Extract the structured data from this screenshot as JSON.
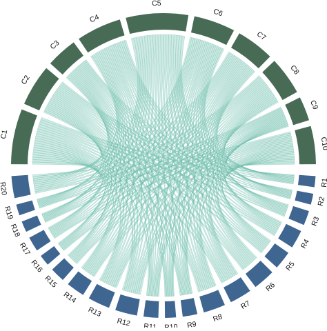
{
  "diagram": {
    "type": "chord",
    "colors": {
      "top_segments": "#476b54",
      "bottom_segments": "#3f6591",
      "ribbon_fill": "#a6d9cc",
      "ribbon_stroke": "#2c9e87",
      "background": "#ffffff"
    },
    "top_group": {
      "labels": [
        "C1",
        "C2",
        "C3",
        "C4",
        "C5",
        "C6",
        "C7",
        "C8",
        "C9",
        "C10"
      ]
    },
    "bottom_group": {
      "labels": [
        "R1",
        "R2",
        "R3",
        "R4",
        "R5",
        "R6",
        "R7",
        "R8",
        "R9",
        "R10",
        "R11",
        "R12",
        "R13",
        "R14",
        "R15",
        "R16",
        "R17",
        "R18",
        "R19",
        "R20"
      ]
    }
  }
}
